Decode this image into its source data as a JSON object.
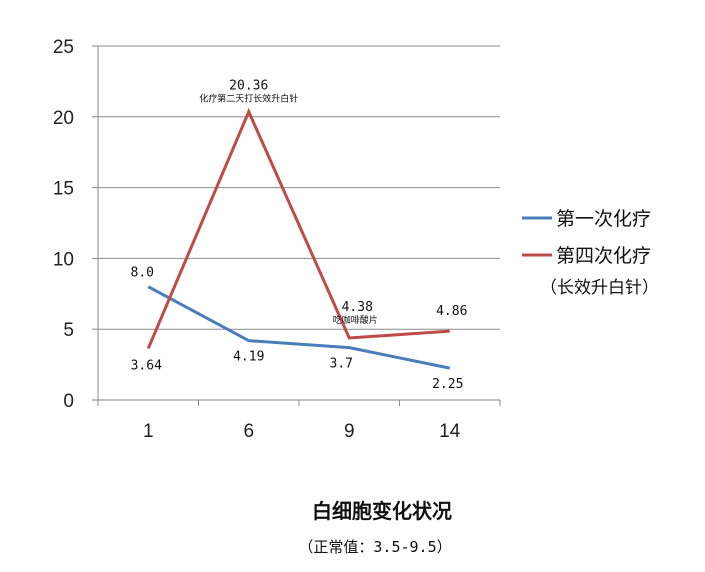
{
  "chart_data": {
    "type": "line",
    "title": "白细胞变化状况",
    "subtitle": "（正常值：3.5-9.5）",
    "categories": [
      "1",
      "6",
      "9",
      "14"
    ],
    "ylim": [
      0,
      25
    ],
    "yticks": [
      0,
      5,
      10,
      15,
      20,
      25
    ],
    "grid": true,
    "legend_position": "right",
    "series": [
      {
        "name": "第一次化疗",
        "color": "#4a7ebb",
        "values": [
          8.0,
          4.19,
          3.7,
          2.25
        ],
        "labels": [
          "8.0",
          "4.19",
          "3.7",
          "2.25"
        ]
      },
      {
        "name": "第四次化疗",
        "name_note": "（长效升白针）",
        "color": "#be4b48",
        "values": [
          3.64,
          20.36,
          4.38,
          4.86
        ],
        "labels": [
          "3.64",
          "20.36",
          "4.38",
          "4.86"
        ]
      }
    ],
    "annotations": [
      {
        "series": 1,
        "index": 1,
        "text": "化疗第二天打长效升白针"
      },
      {
        "series": 1,
        "index": 2,
        "text": "吃咖啡酸片"
      }
    ]
  }
}
